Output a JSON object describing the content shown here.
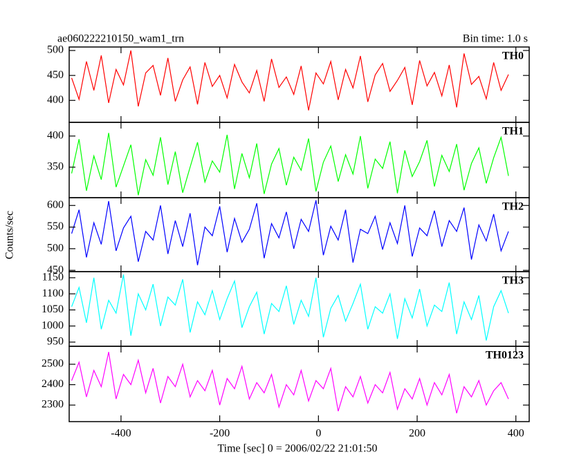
{
  "chart_data": [
    {
      "type": "line",
      "title": "ae060222210150_wam1_trn",
      "subtitle": "Bin time: 1.0 s",
      "x": [
        -500,
        -485,
        -470,
        -455,
        -440,
        -425,
        -410,
        -395,
        -380,
        -365,
        -350,
        -335,
        -320,
        -305,
        -290,
        -275,
        -260,
        -245,
        -230,
        -215,
        -200,
        -185,
        -170,
        -155,
        -140,
        -125,
        -110,
        -95,
        -80,
        -65,
        -50,
        -35,
        -20,
        -5,
        10,
        25,
        40,
        55,
        70,
        85,
        100,
        115,
        130,
        145,
        160,
        175,
        190,
        205,
        220,
        235,
        250,
        265,
        280,
        295,
        310,
        325,
        340,
        355,
        370,
        385
      ],
      "series": [
        {
          "name": "TH0",
          "color": "#ff0000",
          "values": [
            445,
            402,
            478,
            420,
            490,
            395,
            462,
            431,
            500,
            388,
            455,
            470,
            410,
            485,
            398,
            441,
            467,
            392,
            476,
            428,
            450,
            405,
            472,
            437,
            415,
            460,
            398,
            483,
            426,
            447,
            412,
            469,
            380,
            455,
            433,
            478,
            401,
            462,
            425,
            489,
            397,
            451,
            474,
            418,
            440,
            466,
            391,
            480,
            429,
            456,
            409,
            471,
            386,
            494,
            432,
            448,
            403,
            476,
            420,
            452
          ]
        }
      ],
      "xlim": [
        -505,
        427
      ],
      "xticks": [
        -400,
        -200,
        0,
        200,
        400
      ],
      "ylim": [
        356,
        507
      ],
      "yticks": [
        400,
        450,
        500
      ]
    },
    {
      "type": "line",
      "x": [
        -500,
        -485,
        -470,
        -455,
        -440,
        -425,
        -410,
        -395,
        -380,
        -365,
        -350,
        -335,
        -320,
        -305,
        -290,
        -275,
        -260,
        -245,
        -230,
        -215,
        -200,
        -185,
        -170,
        -155,
        -140,
        -125,
        -110,
        -95,
        -80,
        -65,
        -50,
        -35,
        -20,
        -5,
        10,
        25,
        40,
        55,
        70,
        85,
        100,
        115,
        130,
        145,
        160,
        175,
        190,
        205,
        220,
        235,
        250,
        265,
        280,
        295,
        310,
        325,
        340,
        355,
        370,
        385
      ],
      "series": [
        {
          "name": "TH1",
          "color": "#00ff00",
          "values": [
            340,
            395,
            312,
            368,
            330,
            405,
            318,
            352,
            386,
            305,
            362,
            337,
            398,
            322,
            375,
            309,
            350,
            390,
            326,
            360,
            342,
            402,
            315,
            372,
            333,
            388,
            307,
            355,
            380,
            321,
            366,
            345,
            396,
            311,
            358,
            384,
            327,
            370,
            339,
            400,
            316,
            363,
            348,
            391,
            308,
            377,
            335,
            359,
            393,
            319,
            369,
            343,
            387,
            313,
            356,
            381,
            324,
            365,
            398,
            336
          ]
        }
      ],
      "xlim": [
        -505,
        427
      ],
      "xticks": [
        -400,
        -200,
        0,
        200,
        400
      ],
      "ylim": [
        301,
        422
      ],
      "yticks": [
        350,
        400
      ]
    },
    {
      "type": "line",
      "y_label": "Counts/sec",
      "x": [
        -500,
        -485,
        -470,
        -455,
        -440,
        -425,
        -410,
        -395,
        -380,
        -365,
        -350,
        -335,
        -320,
        -305,
        -290,
        -275,
        -260,
        -245,
        -230,
        -215,
        -200,
        -185,
        -170,
        -155,
        -140,
        -125,
        -110,
        -95,
        -80,
        -65,
        -50,
        -35,
        -20,
        -5,
        10,
        25,
        40,
        55,
        70,
        85,
        100,
        115,
        130,
        145,
        160,
        175,
        190,
        205,
        220,
        235,
        250,
        265,
        280,
        295,
        310,
        325,
        340,
        355,
        370,
        385
      ],
      "series": [
        {
          "name": "TH2",
          "color": "#0000ff",
          "values": [
            535,
            590,
            480,
            560,
            510,
            610,
            495,
            548,
            575,
            470,
            540,
            520,
            600,
            488,
            565,
            505,
            582,
            462,
            550,
            530,
            598,
            492,
            570,
            515,
            545,
            605,
            478,
            558,
            525,
            585,
            500,
            568,
            540,
            612,
            485,
            552,
            520,
            590,
            468,
            545,
            535,
            575,
            498,
            560,
            512,
            600,
            482,
            548,
            530,
            588,
            505,
            565,
            540,
            595,
            475,
            555,
            518,
            580,
            495,
            540
          ]
        }
      ],
      "xlim": [
        -505,
        427
      ],
      "xticks": [
        -400,
        -200,
        0,
        200,
        400
      ],
      "ylim": [
        447,
        618
      ],
      "yticks": [
        450,
        500,
        550,
        600
      ]
    },
    {
      "type": "line",
      "x": [
        -500,
        -485,
        -470,
        -455,
        -440,
        -425,
        -410,
        -395,
        -380,
        -365,
        -350,
        -335,
        -320,
        -305,
        -290,
        -275,
        -260,
        -245,
        -230,
        -215,
        -200,
        -185,
        -170,
        -155,
        -140,
        -125,
        -110,
        -95,
        -80,
        -65,
        -50,
        -35,
        -20,
        -5,
        10,
        25,
        40,
        55,
        70,
        85,
        100,
        115,
        130,
        145,
        160,
        175,
        190,
        205,
        220,
        235,
        250,
        265,
        280,
        295,
        310,
        325,
        340,
        355,
        370,
        385
      ],
      "series": [
        {
          "name": "TH3",
          "color": "#00ffff",
          "values": [
            1060,
            1120,
            1010,
            1150,
            990,
            1080,
            1040,
            1160,
            970,
            1100,
            1050,
            1130,
            1000,
            1090,
            1065,
            1145,
            980,
            1075,
            1035,
            1110,
            1020,
            1085,
            1140,
            995,
            1060,
            1105,
            975,
            1070,
            1045,
            1125,
            1005,
            1080,
            1030,
            1150,
            965,
            1055,
            1095,
            1015,
            1070,
            1130,
            990,
            1060,
            1040,
            1100,
            960,
            1085,
            1025,
            1115,
            1000,
            1065,
            1045,
            1135,
            975,
            1075,
            1020,
            1095,
            955,
            1060,
            1110,
            1040
          ]
        }
      ],
      "xlim": [
        -505,
        427
      ],
      "xticks": [
        -400,
        -200,
        0,
        200,
        400
      ],
      "ylim": [
        937,
        1169
      ],
      "yticks": [
        950,
        1000,
        1050,
        1100,
        1150
      ]
    },
    {
      "type": "line",
      "x_label": "Time [sec] 0 = 2006/02/22 21:01:50",
      "x": [
        -500,
        -485,
        -470,
        -455,
        -440,
        -425,
        -410,
        -395,
        -380,
        -365,
        -350,
        -335,
        -320,
        -305,
        -290,
        -275,
        -260,
        -245,
        -230,
        -215,
        -200,
        -185,
        -170,
        -155,
        -140,
        -125,
        -110,
        -95,
        -80,
        -65,
        -50,
        -35,
        -20,
        -5,
        10,
        25,
        40,
        55,
        70,
        85,
        100,
        115,
        130,
        145,
        160,
        175,
        190,
        205,
        220,
        235,
        250,
        265,
        280,
        295,
        310,
        325,
        340,
        355,
        370,
        385
      ],
      "series": [
        {
          "name": "TH0123",
          "color": "#ff00ff",
          "values": [
            2420,
            2510,
            2340,
            2470,
            2390,
            2560,
            2330,
            2450,
            2400,
            2520,
            2360,
            2480,
            2310,
            2440,
            2390,
            2500,
            2340,
            2420,
            2370,
            2470,
            2300,
            2430,
            2380,
            2490,
            2330,
            2410,
            2360,
            2450,
            2290,
            2400,
            2350,
            2470,
            2320,
            2420,
            2380,
            2480,
            2270,
            2390,
            2340,
            2440,
            2310,
            2400,
            2360,
            2460,
            2280,
            2380,
            2330,
            2430,
            2300,
            2410,
            2350,
            2450,
            2260,
            2390,
            2340,
            2420,
            2300,
            2370,
            2410,
            2330
          ]
        }
      ],
      "xlim": [
        -505,
        427
      ],
      "xticks": [
        -400,
        -200,
        0,
        200,
        400
      ],
      "ylim": [
        2219,
        2588
      ],
      "yticks": [
        2300,
        2400,
        2500
      ]
    }
  ]
}
